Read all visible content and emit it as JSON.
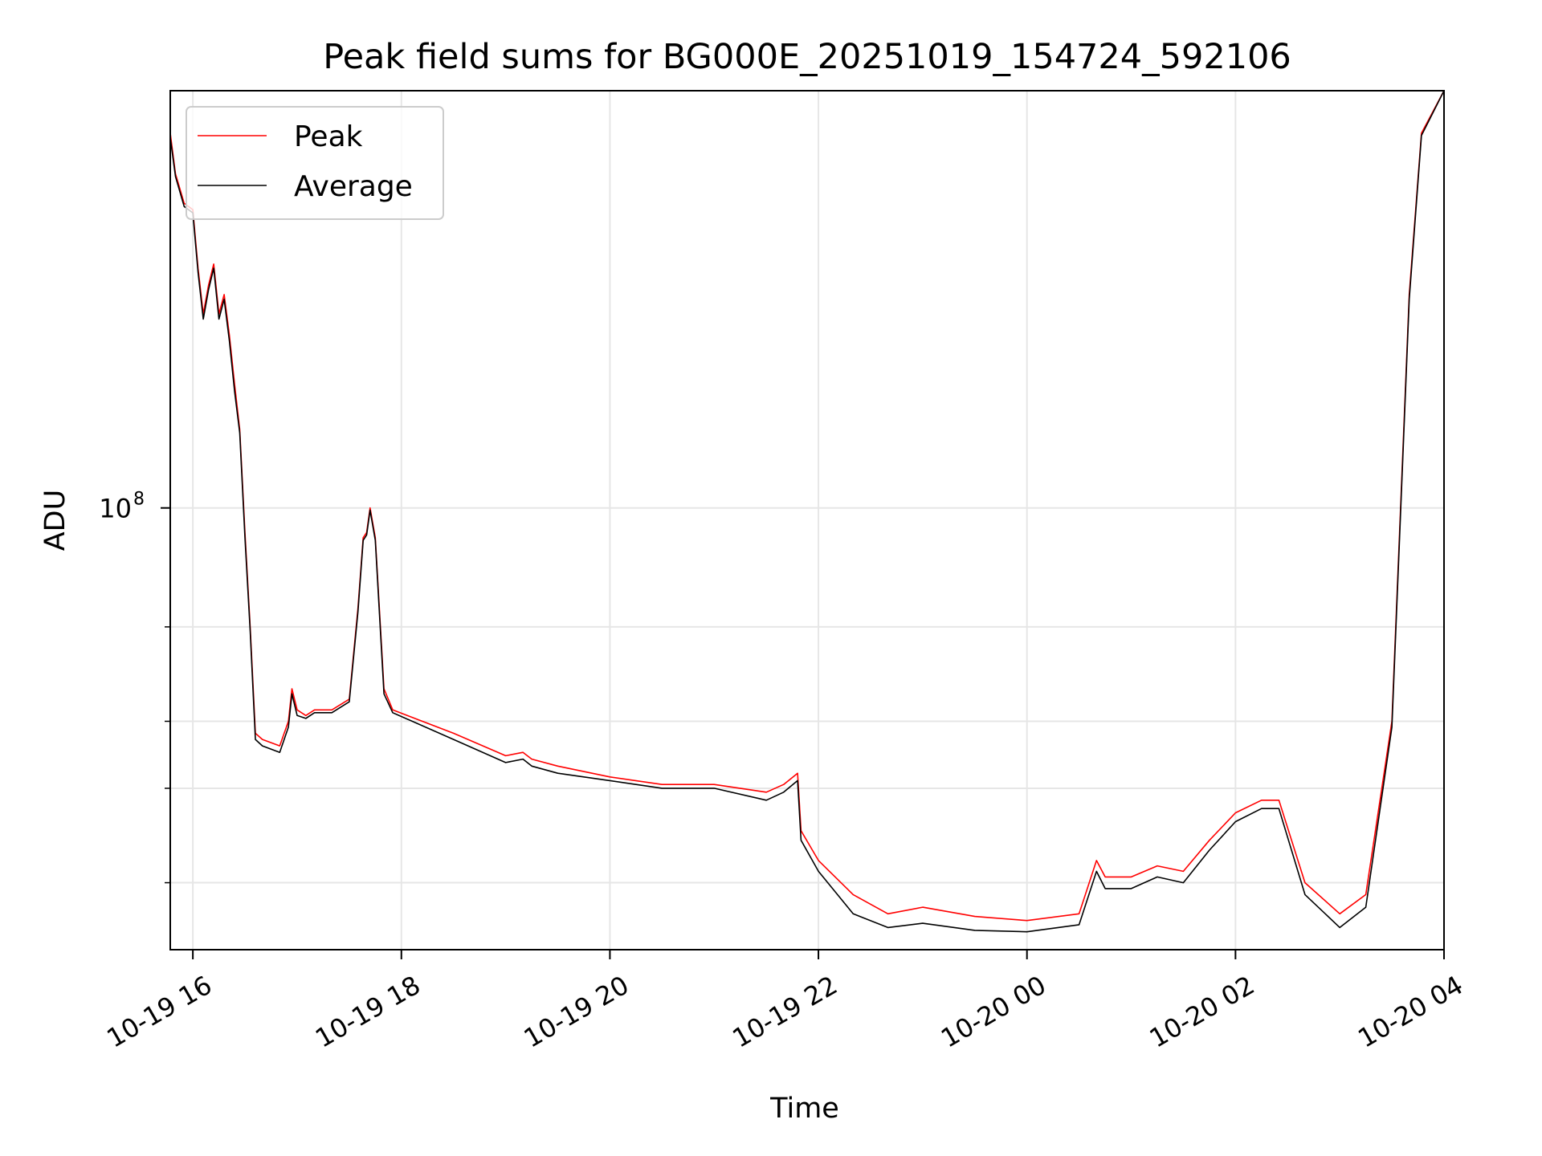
{
  "chart_data": {
    "type": "line",
    "title": "Peak field sums for BG000E_20251019_154724_592106",
    "xlabel": "Time",
    "ylabel": "ADU",
    "y_scale": "log",
    "xlim": [
      "2025-10-19 15:47",
      "2025-10-20 04:00"
    ],
    "ylim": [
      15000000,
      600000000
    ],
    "x_ticks": [
      {
        "value": "2025-10-19 16:00",
        "label": "10-19 16"
      },
      {
        "value": "2025-10-19 18:00",
        "label": "10-19 18"
      },
      {
        "value": "2025-10-19 20:00",
        "label": "10-19 20"
      },
      {
        "value": "2025-10-19 22:00",
        "label": "10-19 22"
      },
      {
        "value": "2025-10-20 00:00",
        "label": "10-20 00"
      },
      {
        "value": "2025-10-20 02:00",
        "label": "10-20 02"
      },
      {
        "value": "2025-10-20 04:00",
        "label": "10-20 04"
      }
    ],
    "y_major_ticks": [
      {
        "value": 100000000,
        "label_base": "10",
        "label_exp": "8"
      }
    ],
    "y_minor_ticks": [
      20000000,
      30000000,
      40000000,
      60000000
    ],
    "grid": true,
    "legend_position": "top-left",
    "series": [
      {
        "name": "Peak",
        "color": "#ff0000",
        "x": [
          "2025-10-19 15:47",
          "2025-10-19 15:50",
          "2025-10-19 15:55",
          "2025-10-19 16:00",
          "2025-10-19 16:03",
          "2025-10-19 16:06",
          "2025-10-19 16:09",
          "2025-10-19 16:12",
          "2025-10-19 16:15",
          "2025-10-19 16:18",
          "2025-10-19 16:21",
          "2025-10-19 16:24",
          "2025-10-19 16:27",
          "2025-10-19 16:30",
          "2025-10-19 16:33",
          "2025-10-19 16:36",
          "2025-10-19 16:40",
          "2025-10-19 16:50",
          "2025-10-19 16:55",
          "2025-10-19 16:57",
          "2025-10-19 17:00",
          "2025-10-19 17:05",
          "2025-10-19 17:10",
          "2025-10-19 17:20",
          "2025-10-19 17:30",
          "2025-10-19 17:35",
          "2025-10-19 17:38",
          "2025-10-19 17:40",
          "2025-10-19 17:42",
          "2025-10-19 17:45",
          "2025-10-19 17:50",
          "2025-10-19 17:55",
          "2025-10-19 18:30",
          "2025-10-19 19:00",
          "2025-10-19 19:10",
          "2025-10-19 19:15",
          "2025-10-19 19:30",
          "2025-10-19 20:00",
          "2025-10-19 20:30",
          "2025-10-19 21:00",
          "2025-10-19 21:30",
          "2025-10-19 21:40",
          "2025-10-19 21:48",
          "2025-10-19 21:50",
          "2025-10-19 22:00",
          "2025-10-19 22:20",
          "2025-10-19 22:40",
          "2025-10-19 23:00",
          "2025-10-19 23:30",
          "2025-10-20 00:00",
          "2025-10-20 00:30",
          "2025-10-20 00:40",
          "2025-10-20 00:45",
          "2025-10-20 01:00",
          "2025-10-20 01:15",
          "2025-10-20 01:30",
          "2025-10-20 01:45",
          "2025-10-20 02:00",
          "2025-10-20 02:15",
          "2025-10-20 02:25",
          "2025-10-20 02:40",
          "2025-10-20 03:00",
          "2025-10-20 03:15",
          "2025-10-20 03:30",
          "2025-10-20 03:40",
          "2025-10-20 03:47",
          "2025-10-20 04:00"
        ],
        "y": [
          500000000,
          420000000,
          370000000,
          360000000,
          280000000,
          230000000,
          260000000,
          285000000,
          230000000,
          250000000,
          210000000,
          170000000,
          140000000,
          90000000,
          60000000,
          38000000,
          37000000,
          36000000,
          40000000,
          46000000,
          42000000,
          41000000,
          42000000,
          42000000,
          44000000,
          65000000,
          88000000,
          90000000,
          100000000,
          88000000,
          46000000,
          42000000,
          38000000,
          34500000,
          35000000,
          34000000,
          33000000,
          31500000,
          30500000,
          30500000,
          29500000,
          30500000,
          32000000,
          25000000,
          22000000,
          19000000,
          17500000,
          18000000,
          17300000,
          17000000,
          17500000,
          22000000,
          20500000,
          20500000,
          21500000,
          21000000,
          24000000,
          27000000,
          28500000,
          28500000,
          20000000,
          17500000,
          19000000,
          40000000,
          250000000,
          500000000,
          600000000
        ]
      },
      {
        "name": "Average",
        "color": "#000000",
        "x": [
          "2025-10-19 15:47",
          "2025-10-19 15:50",
          "2025-10-19 15:55",
          "2025-10-19 16:00",
          "2025-10-19 16:03",
          "2025-10-19 16:06",
          "2025-10-19 16:09",
          "2025-10-19 16:12",
          "2025-10-19 16:15",
          "2025-10-19 16:18",
          "2025-10-19 16:21",
          "2025-10-19 16:24",
          "2025-10-19 16:27",
          "2025-10-19 16:30",
          "2025-10-19 16:33",
          "2025-10-19 16:36",
          "2025-10-19 16:40",
          "2025-10-19 16:50",
          "2025-10-19 16:55",
          "2025-10-19 16:57",
          "2025-10-19 17:00",
          "2025-10-19 17:05",
          "2025-10-19 17:10",
          "2025-10-19 17:20",
          "2025-10-19 17:30",
          "2025-10-19 17:35",
          "2025-10-19 17:38",
          "2025-10-19 17:40",
          "2025-10-19 17:42",
          "2025-10-19 17:45",
          "2025-10-19 17:50",
          "2025-10-19 17:55",
          "2025-10-19 18:30",
          "2025-10-19 19:00",
          "2025-10-19 19:10",
          "2025-10-19 19:15",
          "2025-10-19 19:30",
          "2025-10-19 20:00",
          "2025-10-19 20:30",
          "2025-10-19 21:00",
          "2025-10-19 21:30",
          "2025-10-19 21:40",
          "2025-10-19 21:48",
          "2025-10-19 21:50",
          "2025-10-19 22:00",
          "2025-10-19 22:20",
          "2025-10-19 22:40",
          "2025-10-19 23:00",
          "2025-10-19 23:30",
          "2025-10-20 00:00",
          "2025-10-20 00:30",
          "2025-10-20 00:40",
          "2025-10-20 00:45",
          "2025-10-20 01:00",
          "2025-10-20 01:15",
          "2025-10-20 01:30",
          "2025-10-20 01:45",
          "2025-10-20 02:00",
          "2025-10-20 02:15",
          "2025-10-20 02:25",
          "2025-10-20 02:40",
          "2025-10-20 03:00",
          "2025-10-20 03:15",
          "2025-10-20 03:30",
          "2025-10-20 03:40",
          "2025-10-20 03:47",
          "2025-10-20 04:00"
        ],
        "y": [
          490000000,
          415000000,
          365000000,
          355000000,
          275000000,
          225000000,
          255000000,
          280000000,
          225000000,
          245000000,
          205000000,
          165000000,
          138000000,
          88000000,
          59000000,
          37000000,
          36000000,
          35000000,
          39000000,
          45000000,
          41000000,
          40500000,
          41500000,
          41500000,
          43500000,
          64000000,
          87000000,
          89000000,
          99000000,
          87000000,
          45000000,
          41500000,
          37000000,
          33500000,
          34000000,
          33000000,
          32000000,
          31000000,
          30000000,
          30000000,
          28500000,
          29500000,
          31000000,
          24000000,
          21000000,
          17500000,
          16500000,
          16800000,
          16300000,
          16200000,
          16700000,
          21000000,
          19500000,
          19500000,
          20500000,
          20000000,
          23000000,
          26000000,
          27500000,
          27500000,
          19000000,
          16500000,
          18000000,
          39000000,
          245000000,
          495000000,
          600000000
        ]
      }
    ]
  }
}
